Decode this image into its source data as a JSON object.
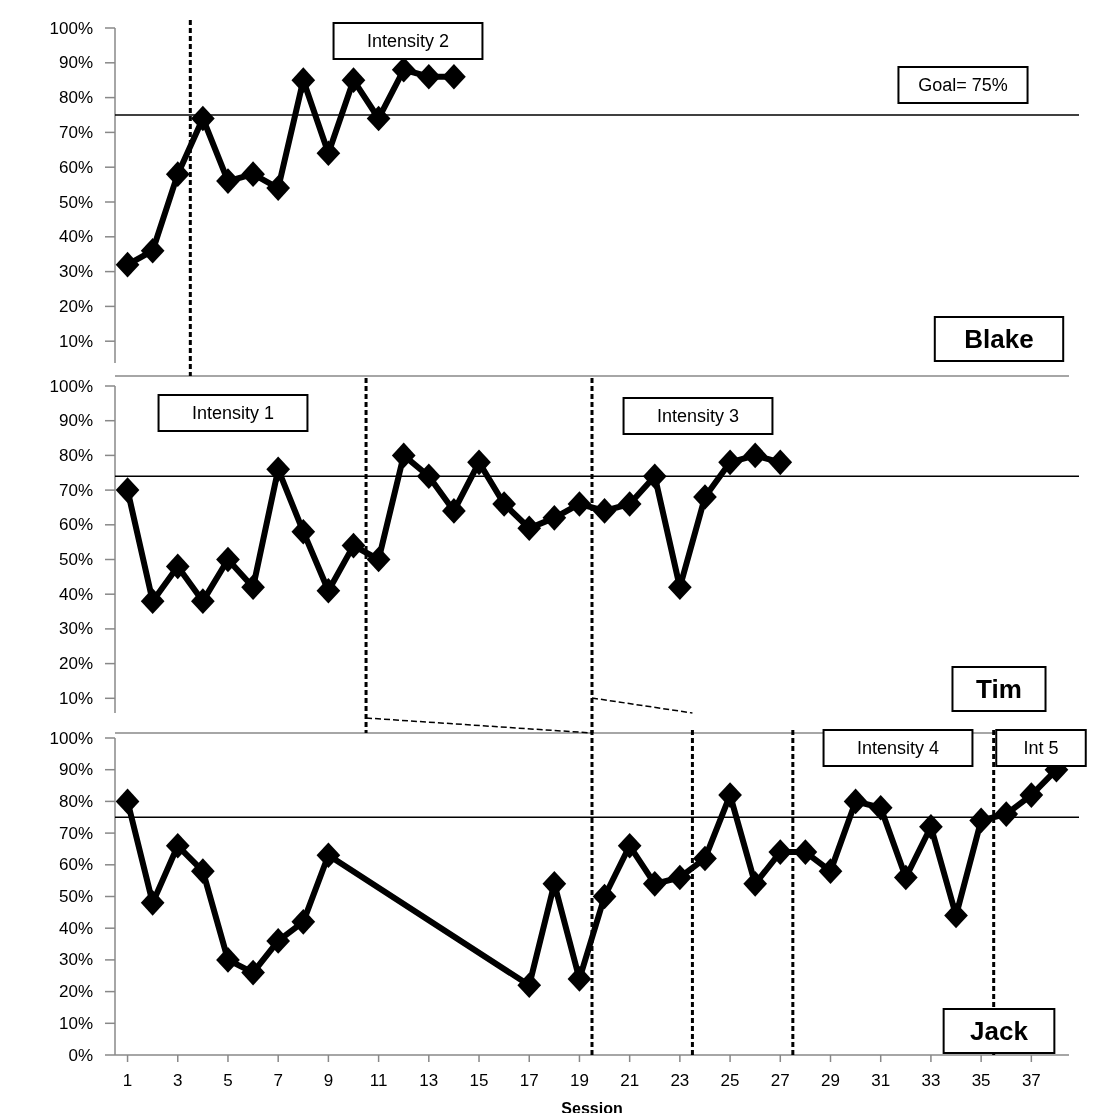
{
  "chart_data": [
    {
      "type": "line",
      "title": "Blake",
      "marker": "diamond",
      "tick_labels": "y",
      "x": [
        1,
        2,
        3,
        4,
        5,
        6,
        7,
        8,
        9,
        10,
        11,
        12,
        13,
        14
      ],
      "series": [
        {
          "color": "#000000",
          "values": [
            32,
            36,
            58,
            74,
            56,
            58,
            54,
            85,
            64,
            85,
            74,
            88,
            86,
            86
          ]
        }
      ],
      "xlim": [
        0.5,
        38.5
      ],
      "ylim": [
        0,
        100
      ],
      "yticks": [
        {
          "value": 10,
          "label": "10%"
        },
        {
          "value": 20,
          "label": "20%"
        },
        {
          "value": 30,
          "label": "30%"
        },
        {
          "value": 40,
          "label": "40%"
        },
        {
          "value": 50,
          "label": "50%"
        },
        {
          "value": 60,
          "label": "60%"
        },
        {
          "value": 70,
          "label": "70%"
        },
        {
          "value": 80,
          "label": "80%"
        },
        {
          "value": 90,
          "label": "90%"
        },
        {
          "value": 100,
          "label": "100%"
        }
      ],
      "ref_lines": [
        {
          "axis": "y",
          "value": 75,
          "label": "Goal= 75%",
          "line_style": "solid"
        },
        {
          "axis": "x",
          "value": 3.5,
          "line_style": "dashed"
        }
      ],
      "annotations": [
        "Intensity 2"
      ]
    },
    {
      "type": "line",
      "title": "Tim",
      "marker": "diamond",
      "tick_labels": "y",
      "x": [
        1,
        2,
        3,
        4,
        5,
        6,
        7,
        8,
        9,
        10,
        11,
        12,
        13,
        14,
        15,
        16,
        17,
        18,
        19,
        20,
        21,
        22,
        23,
        24,
        25,
        26,
        27
      ],
      "series": [
        {
          "color": "#000000",
          "values": [
            70,
            38,
            48,
            38,
            50,
            42,
            76,
            58,
            41,
            54,
            50,
            80,
            74,
            64,
            78,
            66,
            59,
            62,
            66,
            64,
            66,
            74,
            42,
            68,
            78,
            80,
            78
          ]
        }
      ],
      "xlim": [
        0.5,
        38.5
      ],
      "ylim": [
        0,
        100
      ],
      "yticks": [
        {
          "value": 10,
          "label": "10%"
        },
        {
          "value": 20,
          "label": "20%"
        },
        {
          "value": 30,
          "label": "30%"
        },
        {
          "value": 40,
          "label": "40%"
        },
        {
          "value": 50,
          "label": "50%"
        },
        {
          "value": 60,
          "label": "60%"
        },
        {
          "value": 70,
          "label": "70%"
        },
        {
          "value": 80,
          "label": "80%"
        },
        {
          "value": 90,
          "label": "90%"
        },
        {
          "value": 100,
          "label": "100%"
        }
      ],
      "ref_lines": [
        {
          "axis": "y",
          "value": 74,
          "line_style": "solid"
        },
        {
          "axis": "x",
          "value": 10.5,
          "line_style": "dashed"
        },
        {
          "axis": "x",
          "value": 19.5,
          "line_style": "dashed"
        }
      ],
      "annotations": [
        "Intensity 1",
        "Intensity 3"
      ]
    },
    {
      "type": "line",
      "title": "Jack",
      "xlabel": "Session",
      "marker": "diamond",
      "x": [
        1,
        2,
        3,
        4,
        5,
        6,
        7,
        8,
        9,
        17,
        18,
        19,
        20,
        21,
        22,
        23,
        24,
        25,
        26,
        27,
        28,
        29,
        30,
        31,
        32,
        33,
        34,
        35,
        36,
        37,
        38
      ],
      "series": [
        {
          "color": "#000000",
          "values": [
            80,
            48,
            66,
            58,
            30,
            26,
            36,
            42,
            63,
            22,
            54,
            24,
            50,
            66,
            54,
            56,
            62,
            82,
            54,
            64,
            64,
            58,
            80,
            78,
            56,
            72,
            44,
            74,
            76,
            82,
            90
          ]
        }
      ],
      "xlim": [
        0.5,
        38.5
      ],
      "ylim": [
        0,
        100
      ],
      "xticks": [
        1,
        3,
        5,
        7,
        9,
        11,
        13,
        15,
        17,
        19,
        21,
        23,
        25,
        27,
        29,
        31,
        33,
        35,
        37
      ],
      "yticks": [
        {
          "value": 0,
          "label": "0%"
        },
        {
          "value": 10,
          "label": "10%"
        },
        {
          "value": 20,
          "label": "20%"
        },
        {
          "value": 30,
          "label": "30%"
        },
        {
          "value": 40,
          "label": "40%"
        },
        {
          "value": 50,
          "label": "50%"
        },
        {
          "value": 60,
          "label": "60%"
        },
        {
          "value": 70,
          "label": "70%"
        },
        {
          "value": 80,
          "label": "80%"
        },
        {
          "value": 90,
          "label": "90%"
        },
        {
          "value": 100,
          "label": "100%"
        }
      ],
      "ref_lines": [
        {
          "axis": "y",
          "value": 75,
          "line_style": "solid"
        },
        {
          "axis": "x",
          "value": 19.5,
          "line_style": "dashed"
        },
        {
          "axis": "x",
          "value": 23.5,
          "line_style": "dashed"
        },
        {
          "axis": "x",
          "value": 27.5,
          "line_style": "dashed"
        },
        {
          "axis": "x",
          "value": 35.5,
          "line_style": "dashed"
        }
      ],
      "annotations": [
        "Intensity 4",
        "Int 5"
      ]
    }
  ]
}
